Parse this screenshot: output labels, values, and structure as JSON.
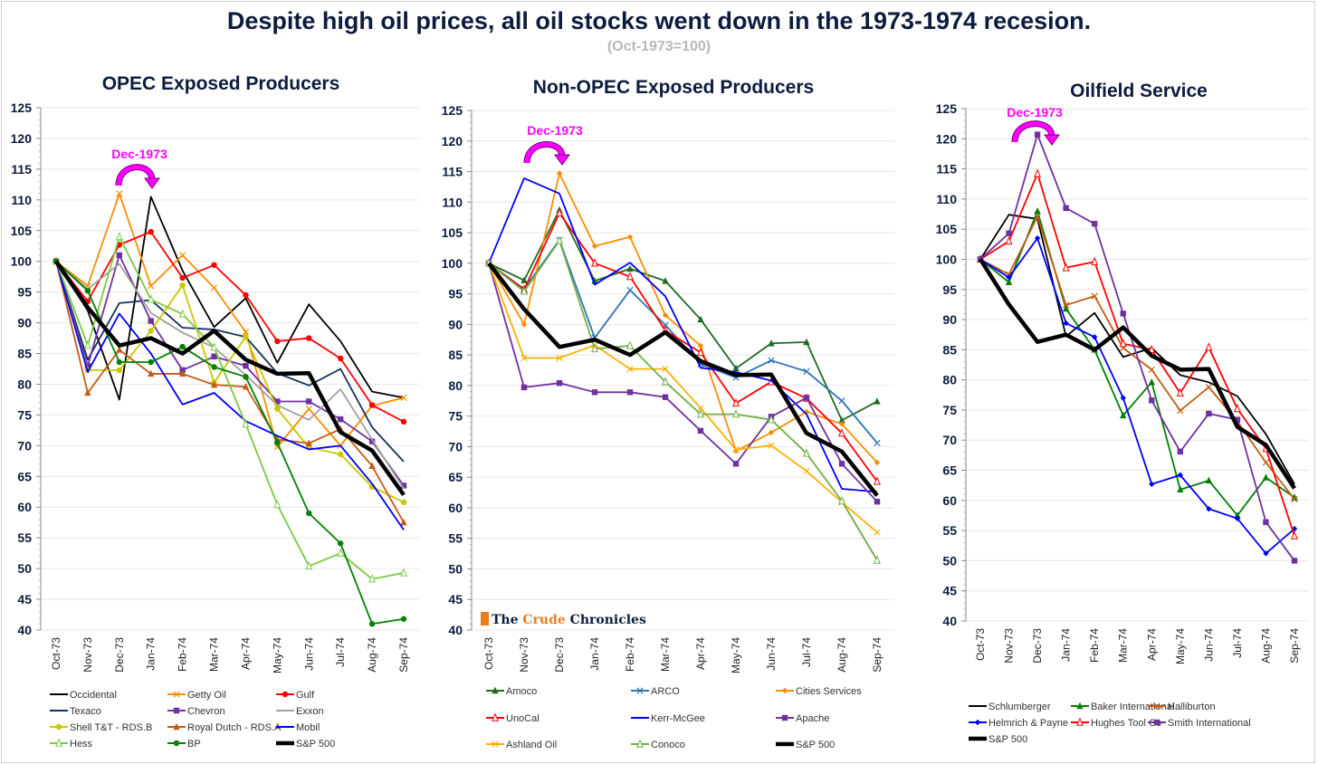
{
  "title": "Despite high oil prices, all oil stocks went down in the 1973-1974 recesion.",
  "subtitle": "(Oct-1973=100)",
  "watermark": {
    "the": "The ",
    "crude": "Crude",
    "chronicles": " Chronicles"
  },
  "chart_data": [
    {
      "type": "line",
      "title": "OPEC Exposed Producers",
      "annotation": "Dec-1973",
      "x": [
        "Oct-73",
        "Nov-73",
        "Dec-73",
        "Jan-74",
        "Feb-74",
        "Mar-74",
        "Apr-74",
        "May-74",
        "Jun-74",
        "Jul-74",
        "Aug-74",
        "Sep-74"
      ],
      "ylim": [
        40,
        125
      ],
      "yticks": [
        40,
        45,
        50,
        55,
        60,
        65,
        70,
        75,
        80,
        85,
        90,
        95,
        100,
        105,
        110,
        115,
        120,
        125
      ],
      "grid": true,
      "legend": "bottom",
      "series": [
        {
          "name": "Occidental",
          "color": "#000000",
          "marker": "none",
          "values": [
            100,
            92,
            77.5,
            110.5,
            98.5,
            89.3,
            94,
            83.5,
            93,
            87,
            78.8,
            77.8
          ]
        },
        {
          "name": "Getty Oil",
          "color": "#ff8c00",
          "marker": "x",
          "values": [
            100,
            96,
            111,
            96,
            101,
            95.7,
            88.5,
            69.8,
            76,
            70,
            76.5,
            77.8
          ]
        },
        {
          "name": "Gulf",
          "color": "#ff0000",
          "marker": "circle",
          "values": [
            100,
            93.5,
            102.7,
            104.8,
            97.3,
            99.4,
            94.5,
            87,
            87.5,
            84.2,
            76.6,
            73.9
          ]
        },
        {
          "name": "Texaco",
          "color": "#14305e",
          "marker": "none",
          "values": [
            100,
            84,
            93.2,
            93.7,
            89.2,
            88.9,
            87.7,
            81.8,
            79.8,
            82.5,
            73,
            67.4
          ]
        },
        {
          "name": "Chevron",
          "color": "#7030a0",
          "marker": "square",
          "values": [
            100,
            83,
            101,
            90.3,
            82.3,
            84.5,
            83,
            77.2,
            77.2,
            74.3,
            70.7,
            63.5
          ]
        },
        {
          "name": "Exxon",
          "color": "#a0a0a0",
          "marker": "none",
          "values": [
            100,
            95.5,
            99.6,
            91.6,
            88.4,
            86,
            81.5,
            76.6,
            74.2,
            79.2,
            71,
            63
          ]
        },
        {
          "name": "Shell T&T - RDS.B",
          "color": "#c8c800",
          "marker": "circle",
          "values": [
            100,
            82.3,
            82.3,
            88.7,
            96.1,
            80.3,
            87.7,
            76,
            69.7,
            68.6,
            63.3,
            60.8
          ]
        },
        {
          "name": "Royal Dutch - RDS.A",
          "color": "#c55a11",
          "marker": "triangle",
          "values": [
            100,
            78.6,
            85.6,
            81.7,
            81.7,
            79.9,
            79.6,
            71,
            70.4,
            72.7,
            66.7,
            57.5
          ]
        },
        {
          "name": "Mobil",
          "color": "#0000ff",
          "marker": "none",
          "values": [
            100,
            82,
            91.5,
            85,
            76.7,
            78.6,
            74,
            71.6,
            69.4,
            70,
            63.8,
            56.3
          ]
        },
        {
          "name": "Hess",
          "color": "#7ac943",
          "marker": "opentri",
          "values": [
            100,
            86.3,
            104,
            93.8,
            91.4,
            86,
            73.5,
            60.4,
            50.4,
            52.5,
            48.3,
            49.3
          ]
        },
        {
          "name": "BP",
          "color": "#008000",
          "marker": "circle",
          "values": [
            100,
            95.2,
            83.6,
            83.6,
            86.1,
            82.8,
            81.2,
            70.5,
            59,
            54.1,
            41,
            41.8
          ]
        },
        {
          "name": "S&P 500",
          "color": "#000000",
          "marker": "none",
          "bold": true,
          "values": [
            100,
            92.5,
            86.3,
            87.5,
            85,
            88.7,
            84,
            81.7,
            81.8,
            72.2,
            69.2,
            62
          ]
        }
      ]
    },
    {
      "type": "line",
      "title": "Non-OPEC Exposed Producers",
      "annotation": "Dec-1973",
      "x": [
        "Oct-73",
        "Nov-73",
        "Dec-73",
        "Jan-74",
        "Feb-74",
        "Mar-74",
        "Apr-74",
        "May-74",
        "Jun-74",
        "Jul-74",
        "Aug-74",
        "Sep-74"
      ],
      "ylim": [
        40,
        125
      ],
      "yticks": [
        40,
        45,
        50,
        55,
        60,
        65,
        70,
        75,
        80,
        85,
        90,
        95,
        100,
        105,
        110,
        115,
        120,
        125
      ],
      "grid": true,
      "legend": "bottom",
      "series": [
        {
          "name": "Amoco",
          "color": "#1e6b1e",
          "marker": "triangle",
          "values": [
            100,
            97.2,
            108.7,
            97.1,
            99.1,
            97.1,
            90.8,
            82.8,
            86.9,
            87.1,
            74.3,
            77.4
          ]
        },
        {
          "name": "ARCO",
          "color": "#2e75b6",
          "marker": "x",
          "values": [
            100,
            95.8,
            103.8,
            87.8,
            95.6,
            89.9,
            83.5,
            81.3,
            84.1,
            82.3,
            77.5,
            70.6
          ]
        },
        {
          "name": "Cities Services",
          "color": "#ff8c00",
          "marker": "diamond",
          "values": [
            100,
            90,
            114.7,
            102.8,
            104.3,
            91.5,
            86.5,
            69.3,
            72.3,
            75.7,
            73.7,
            67.4
          ]
        },
        {
          "name": "UnoCal",
          "color": "#ff0000",
          "marker": "opentri",
          "values": [
            100,
            95.7,
            108.2,
            100,
            97.8,
            89,
            85.4,
            77.1,
            80.6,
            77.9,
            72.2,
            64.3
          ]
        },
        {
          "name": "Kerr-McGee",
          "color": "#0000ff",
          "marker": "none",
          "values": [
            100,
            113.9,
            111.4,
            96.5,
            100.1,
            94.6,
            82.9,
            82.2,
            80.8,
            75.3,
            63.1,
            62.6
          ]
        },
        {
          "name": "Apache",
          "color": "#7030a0",
          "marker": "square",
          "values": [
            100,
            79.7,
            80.4,
            78.9,
            78.9,
            78.1,
            72.6,
            67.2,
            74.9,
            78,
            67.2,
            61
          ]
        },
        {
          "name": "Ashland Oil",
          "color": "#ffb000",
          "marker": "x",
          "values": [
            100,
            84.5,
            84.5,
            86.6,
            82.7,
            82.7,
            76.3,
            69.5,
            70.2,
            66,
            60.9,
            56
          ]
        },
        {
          "name": "Conoco",
          "color": "#70ad47",
          "marker": "opentri",
          "values": [
            100,
            95.4,
            103.7,
            86,
            86.5,
            80.6,
            75.3,
            75.3,
            74.4,
            68.9,
            61.1,
            51.4
          ]
        },
        {
          "name": "S&P 500",
          "color": "#000000",
          "marker": "none",
          "bold": true,
          "values": [
            100,
            92.5,
            86.3,
            87.5,
            85,
            88.7,
            84,
            81.7,
            81.8,
            72.2,
            69.2,
            62
          ]
        }
      ]
    },
    {
      "type": "line",
      "title": "Oilfield Service",
      "annotation": "Dec-1973",
      "x": [
        "Oct-73",
        "Nov-73",
        "Dec-73",
        "Jan-74",
        "Feb-74",
        "Mar-74",
        "Apr-74",
        "May-74",
        "Jun-74",
        "Jul-74",
        "Aug-74",
        "Sep-74"
      ],
      "ylim": [
        40,
        125
      ],
      "yticks": [
        40,
        45,
        50,
        55,
        60,
        65,
        70,
        75,
        80,
        85,
        90,
        95,
        100,
        105,
        110,
        115,
        120,
        125
      ],
      "grid": true,
      "legend": "bottom",
      "series": [
        {
          "name": "Schlumberger",
          "color": "#000000",
          "marker": "none",
          "values": [
            100,
            107.4,
            106.7,
            87.2,
            91.1,
            83.8,
            85.3,
            80.8,
            79.6,
            77.3,
            71,
            62.7
          ]
        },
        {
          "name": "Baker International",
          "color": "#008000",
          "marker": "triangle",
          "values": [
            100,
            96.2,
            108,
            91.8,
            85,
            74.1,
            79.6,
            61.8,
            63.3,
            57.5,
            63.8,
            60.5
          ]
        },
        {
          "name": "Halliburton",
          "color": "#c55a11",
          "marker": "x",
          "values": [
            100,
            97.5,
            107.1,
            92.4,
            93.9,
            85.3,
            81.7,
            74.9,
            78.8,
            73.1,
            66.3,
            60.2
          ]
        },
        {
          "name": "Helmrich & Payne",
          "color": "#0000ff",
          "marker": "diamond",
          "values": [
            100,
            97,
            103.5,
            89.4,
            87.1,
            77,
            62.7,
            64.2,
            58.6,
            57,
            51.2,
            55.3
          ]
        },
        {
          "name": "Hughes Tool Co",
          "color": "#ff0000",
          "marker": "opentri",
          "values": [
            100,
            103,
            114.2,
            98.6,
            99.6,
            86,
            85,
            77.8,
            85.4,
            75.2,
            68.6,
            54.1
          ]
        },
        {
          "name": "Smith International",
          "color": "#7030a0",
          "marker": "square",
          "values": [
            100,
            104.3,
            120.7,
            108.5,
            105.9,
            91,
            76.6,
            68.1,
            74.4,
            73.4,
            56.4,
            50
          ]
        },
        {
          "name": "S&P 500",
          "color": "#000000",
          "marker": "none",
          "bold": true,
          "values": [
            100,
            92.5,
            86.3,
            87.5,
            85,
            88.7,
            84,
            81.7,
            81.8,
            72.2,
            69.2,
            62
          ]
        }
      ]
    }
  ]
}
